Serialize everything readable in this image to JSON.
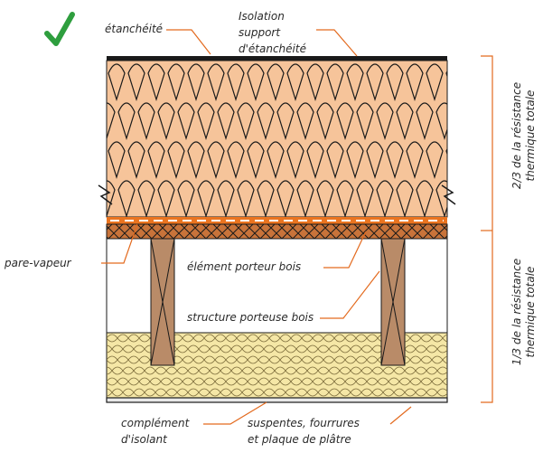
{
  "status": {
    "check_color": "#2e9e3e"
  },
  "colors": {
    "insulation_top": "#f6c49a",
    "insulation_line": "#1a1a1a",
    "vapor_barrier": "#ea7420",
    "osb": "#c8733a",
    "timber": "#b98b68",
    "insulation_bottom": "#f5e7a6",
    "leader": "#e36a1e"
  },
  "labels": {
    "etancheite": "étanchéité",
    "isolation_l1": "Isolation",
    "isolation_l2": "support",
    "isolation_l3": "d'étanchéité",
    "pare_vapeur": "pare-vapeur",
    "element_porteur": "élément porteur bois",
    "structure_porteuse": "structure porteuse bois",
    "complement_l1": "complément",
    "complement_l2": "d'isolant",
    "suspentes_l1": "suspentes, fourrures",
    "suspentes_l2": "et plaque de plâtre",
    "resistance_top_l1": "2/3 de la résistance",
    "resistance_top_l2": "thermique totale",
    "resistance_bottom_l1": "1/3 de la résistance",
    "resistance_bottom_l2": "thermique totale"
  }
}
